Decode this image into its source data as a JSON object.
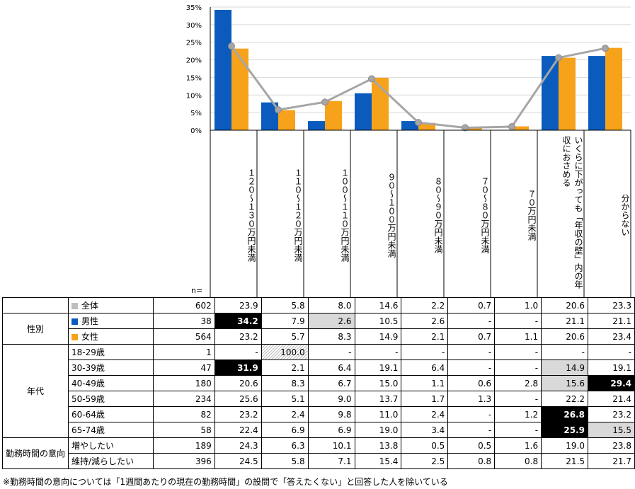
{
  "chart_data": {
    "type": "bar",
    "categories": [
      "１２０～１３０万円未満",
      "１１０～１２０万円未満",
      "１００～１１０万円未満",
      "９０～１００万円未満",
      "８０～９０万円未満",
      "７０～８０万円未満",
      "７０万円未満",
      "いくらに下がっても「年収の壁」内の年収におさめる",
      "分からない"
    ],
    "series": [
      {
        "name": "男性",
        "type": "bar",
        "color": "#0a5bbd",
        "values": [
          34.2,
          7.9,
          2.6,
          10.5,
          2.6,
          0,
          0,
          21.1,
          21.1
        ]
      },
      {
        "name": "女性",
        "type": "bar",
        "color": "#f7a21b",
        "values": [
          23.2,
          5.7,
          8.3,
          14.9,
          2.1,
          0.7,
          1.1,
          20.6,
          23.4
        ]
      },
      {
        "name": "全体",
        "type": "line",
        "color": "#a6a6a6",
        "values": [
          23.9,
          5.8,
          8.0,
          14.6,
          2.2,
          0.7,
          1.0,
          20.6,
          23.3
        ]
      }
    ],
    "ylim": [
      0,
      35
    ],
    "yticks": [
      "0%",
      "5%",
      "10%",
      "15%",
      "20%",
      "25%",
      "30%",
      "35%"
    ],
    "grid": true
  },
  "table": {
    "n_label": "n=",
    "footnote": "※勤務時間の意向については「1週間あたりの現在の勤務時間」の設問で「答えたくない」と回答した人を除いている",
    "rows": [
      {
        "group": "",
        "label": "全体",
        "swatch": "#bfbfbf",
        "n": "602",
        "values": [
          "23.9",
          "5.8",
          "8.0",
          "14.6",
          "2.2",
          "0.7",
          "1.0",
          "20.6",
          "23.3"
        ],
        "hl": [
          "",
          "",
          "",
          "",
          "",
          "",
          "",
          "",
          ""
        ]
      },
      {
        "group": "性別",
        "label": "男性",
        "swatch": "#0a5bbd",
        "n": "38",
        "values": [
          "34.2",
          "7.9",
          "2.6",
          "10.5",
          "2.6",
          "-",
          "-",
          "21.1",
          "21.1"
        ],
        "hl": [
          "black",
          "",
          "gray",
          "",
          "",
          "",
          "",
          "",
          ""
        ]
      },
      {
        "group": "",
        "label": "女性",
        "swatch": "#f7a21b",
        "n": "564",
        "values": [
          "23.2",
          "5.7",
          "8.3",
          "14.9",
          "2.1",
          "0.7",
          "1.1",
          "20.6",
          "23.4"
        ],
        "hl": [
          "",
          "",
          "",
          "",
          "",
          "",
          "",
          "",
          ""
        ]
      },
      {
        "group": "年代",
        "label": "18-29歳",
        "swatch": "",
        "n": "1",
        "values": [
          "-",
          "100.0",
          "-",
          "-",
          "-",
          "-",
          "-",
          "-",
          "-"
        ],
        "hl": [
          "",
          "hatch",
          "",
          "",
          "",
          "",
          "",
          "",
          ""
        ]
      },
      {
        "group": "",
        "label": "30-39歳",
        "swatch": "",
        "n": "47",
        "values": [
          "31.9",
          "2.1",
          "6.4",
          "19.1",
          "6.4",
          "-",
          "-",
          "14.9",
          "19.1"
        ],
        "hl": [
          "black",
          "",
          "",
          "",
          "",
          "",
          "",
          "gray",
          ""
        ]
      },
      {
        "group": "",
        "label": "40-49歳",
        "swatch": "",
        "n": "180",
        "values": [
          "20.6",
          "8.3",
          "6.7",
          "15.0",
          "1.1",
          "0.6",
          "2.8",
          "15.6",
          "29.4"
        ],
        "hl": [
          "",
          "",
          "",
          "",
          "",
          "",
          "",
          "gray",
          "black"
        ]
      },
      {
        "group": "",
        "label": "50-59歳",
        "swatch": "",
        "n": "234",
        "values": [
          "25.6",
          "5.1",
          "9.0",
          "13.7",
          "1.7",
          "1.3",
          "-",
          "22.2",
          "21.4"
        ],
        "hl": [
          "",
          "",
          "",
          "",
          "",
          "",
          "",
          "",
          ""
        ]
      },
      {
        "group": "",
        "label": "60-64歳",
        "swatch": "",
        "n": "82",
        "values": [
          "23.2",
          "2.4",
          "9.8",
          "11.0",
          "2.4",
          "-",
          "1.2",
          "26.8",
          "23.2"
        ],
        "hl": [
          "",
          "",
          "",
          "",
          "",
          "",
          "",
          "black",
          ""
        ]
      },
      {
        "group": "",
        "label": "65-74歳",
        "swatch": "",
        "n": "58",
        "values": [
          "22.4",
          "6.9",
          "6.9",
          "19.0",
          "3.4",
          "-",
          "-",
          "25.9",
          "15.5"
        ],
        "hl": [
          "",
          "",
          "",
          "",
          "",
          "",
          "",
          "black",
          "gray"
        ]
      },
      {
        "group": "勤務時間の意向",
        "label": "増やしたい",
        "swatch": "",
        "n": "189",
        "values": [
          "24.3",
          "6.3",
          "10.1",
          "13.8",
          "0.5",
          "0.5",
          "1.6",
          "19.0",
          "23.8"
        ],
        "hl": [
          "",
          "",
          "",
          "",
          "",
          "",
          "",
          "",
          ""
        ]
      },
      {
        "group": "",
        "label": "維持/減らしたい",
        "swatch": "",
        "n": "396",
        "values": [
          "24.5",
          "5.8",
          "7.1",
          "15.4",
          "2.5",
          "0.8",
          "0.8",
          "21.5",
          "21.7"
        ],
        "hl": [
          "",
          "",
          "",
          "",
          "",
          "",
          "",
          "",
          ""
        ]
      }
    ],
    "groups": [
      {
        "label": "性別",
        "start": 1,
        "span": 2
      },
      {
        "label": "年代",
        "start": 3,
        "span": 6
      },
      {
        "label": "勤務時間の意向",
        "start": 9,
        "span": 2
      }
    ]
  }
}
